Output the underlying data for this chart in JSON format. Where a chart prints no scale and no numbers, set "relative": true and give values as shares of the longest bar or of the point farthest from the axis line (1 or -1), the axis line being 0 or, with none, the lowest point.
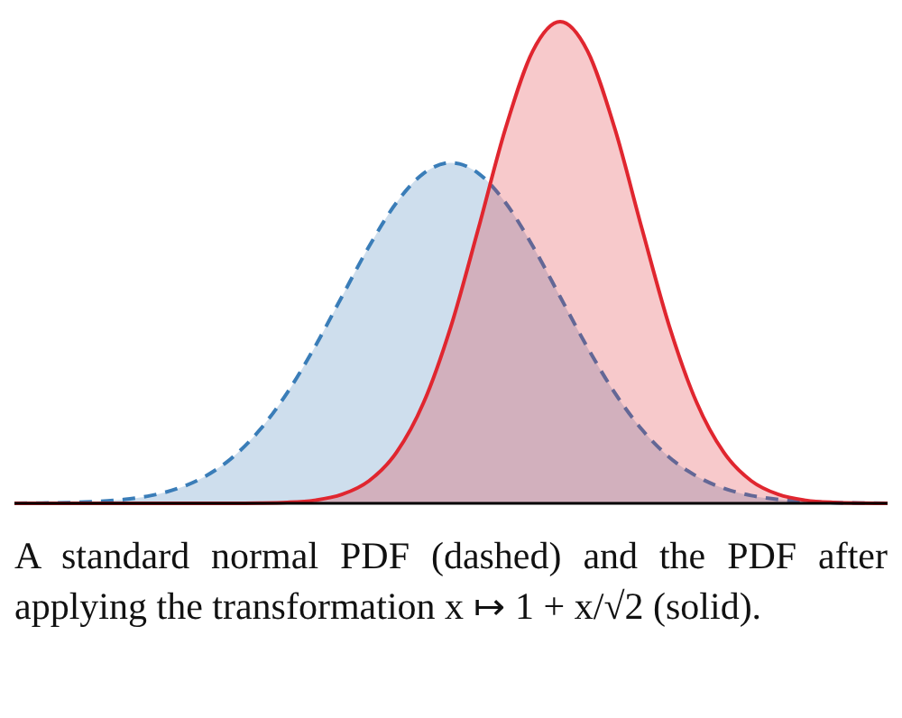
{
  "chart_data": {
    "type": "area",
    "relative": true,
    "tick_labels": false,
    "categories": [
      null,
      null,
      null,
      null,
      null,
      null,
      null,
      null,
      null,
      null,
      null,
      null,
      null,
      null,
      null,
      null,
      null,
      null,
      null,
      null,
      null,
      null,
      null,
      null,
      null,
      null,
      null,
      null,
      null,
      null,
      null,
      null,
      null
    ],
    "series": [
      {
        "color": "#3a7db8",
        "line_style": "dashed",
        "values": [
          0.0002,
          0.0006,
          0.0015,
          0.0036,
          0.0079,
          0.0161,
          0.0311,
          0.0563,
          0.0957,
          0.153,
          0.2296,
          0.3237,
          0.4289,
          0.5337,
          0.624,
          0.6853,
          0.7071,
          0.6853,
          0.624,
          0.5337,
          0.4289,
          0.3237,
          0.2296,
          0.153,
          0.0957,
          0.0563,
          0.0311,
          0.0161,
          0.0079,
          0.0036,
          0.0015,
          0.0006,
          0.0002
        ]
      },
      {
        "color": "#e0262f",
        "line_style": "solid",
        "values": [
          0,
          0,
          0,
          0,
          0,
          0,
          0,
          0,
          0.0001,
          0.0005,
          0.0019,
          0.0063,
          0.0183,
          0.0468,
          0.1054,
          0.2096,
          0.3679,
          0.5698,
          0.7788,
          0.9394,
          1,
          0.9394,
          0.7788,
          0.5698,
          0.3679,
          0.2096,
          0.1054,
          0.0468,
          0.0183,
          0.0063,
          0.0019,
          0.0005,
          0.0001
        ]
      }
    ],
    "annotations": [
      "A standard normal PDF (dashed) and the PDF after applying the transformation x ↦ 1 + x/√2 (solid)."
    ]
  }
}
